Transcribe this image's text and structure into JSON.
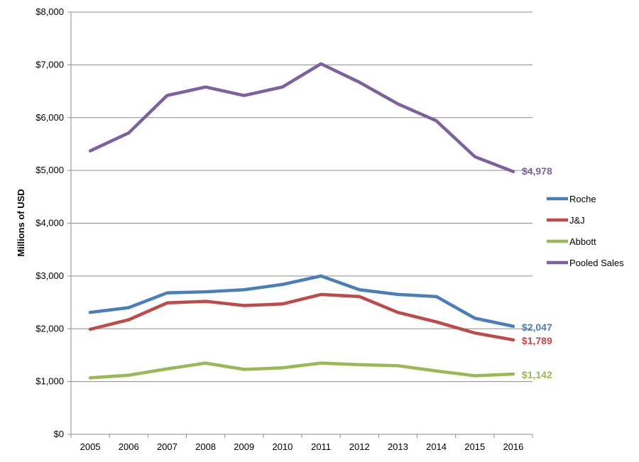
{
  "chart_data": {
    "type": "line",
    "title": "",
    "xlabel": "",
    "ylabel": "Millions of USD",
    "x": [
      "2005",
      "2006",
      "2007",
      "2008",
      "2009",
      "2010",
      "2011",
      "2012",
      "2013",
      "2014",
      "2015",
      "2016"
    ],
    "ylim": [
      0,
      8000
    ],
    "y_ticks": [
      {
        "value": 0,
        "label": "$0"
      },
      {
        "value": 1000,
        "label": "$1,000"
      },
      {
        "value": 2000,
        "label": "$2,000"
      },
      {
        "value": 3000,
        "label": "$3,000"
      },
      {
        "value": 4000,
        "label": "$4,000"
      },
      {
        "value": 5000,
        "label": "$5,000"
      },
      {
        "value": 6000,
        "label": "$6,000"
      },
      {
        "value": 7000,
        "label": "$7,000"
      },
      {
        "value": 8000,
        "label": "$8,000"
      }
    ],
    "grid": true,
    "legend_position": "right",
    "series": [
      {
        "name": "Roche",
        "color": "#4a7ebb",
        "values": [
          2310,
          2400,
          2680,
          2700,
          2740,
          2840,
          3000,
          2740,
          2650,
          2610,
          2200,
          2047
        ],
        "end_label": "$2,047"
      },
      {
        "name": "J&J",
        "color": "#be4b48",
        "values": [
          1990,
          2170,
          2490,
          2520,
          2440,
          2470,
          2650,
          2610,
          2310,
          2130,
          1920,
          1789
        ],
        "end_label": "$1,789"
      },
      {
        "name": "Abbott",
        "color": "#98b954",
        "values": [
          1070,
          1120,
          1240,
          1350,
          1230,
          1260,
          1350,
          1320,
          1300,
          1200,
          1110,
          1142
        ],
        "end_label": "$1,142"
      },
      {
        "name": "Pooled Sales",
        "color": "#7d60a0",
        "values": [
          5370,
          5710,
          6420,
          6580,
          6420,
          6580,
          7020,
          6670,
          6260,
          5940,
          5260,
          4978
        ],
        "end_label": "$4,978"
      }
    ]
  }
}
